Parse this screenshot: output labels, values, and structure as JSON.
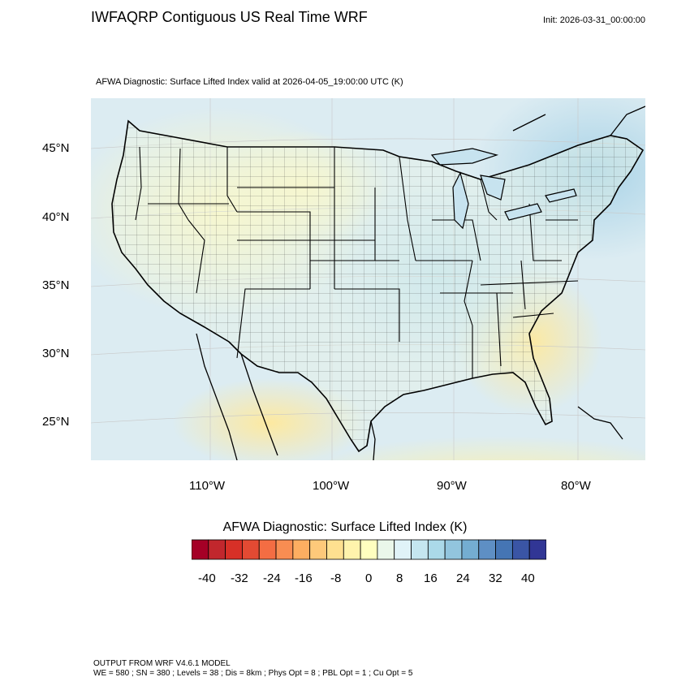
{
  "header": {
    "title": "IWFAQRP Contiguous US Real Time WRF",
    "init": "Init: 2026-03-31_00:00:00",
    "subtitle": "AFWA Diagnostic: Surface Lifted Index valid at 2026-04-05_19:00:00 UTC   (K)"
  },
  "map": {
    "lat_labels": [
      "45°N",
      "40°N",
      "35°N",
      "30°N",
      "25°N"
    ],
    "lon_labels": [
      "110°W",
      "100°W",
      "90°W",
      "80°W"
    ]
  },
  "colorbar": {
    "title": "AFWA Diagnostic: Surface Lifted Index  (K)",
    "tick_labels": [
      "-40",
      "-32",
      "-24",
      "-16",
      "-8",
      "0",
      "8",
      "16",
      "24",
      "32",
      "40"
    ],
    "colors": [
      "#a50026",
      "#c1272d",
      "#d73027",
      "#e34a33",
      "#f46d43",
      "#f88d52",
      "#fdae61",
      "#fec97a",
      "#fee090",
      "#fff3ac",
      "#ffffbf",
      "#eaf7ea",
      "#e0f3f8",
      "#c5e6f0",
      "#abd9e9",
      "#92c5de",
      "#74add1",
      "#5e8fc4",
      "#4575b4",
      "#3a55a5",
      "#313695"
    ]
  },
  "footer": {
    "line1": "OUTPUT FROM WRF V4.6.1 MODEL",
    "line2": "WE = 580 ; SN = 380 ; Levels = 38 ; Dis = 8km ; Phys Opt = 8 ; PBL Opt = 1 ; Cu Opt = 5"
  }
}
